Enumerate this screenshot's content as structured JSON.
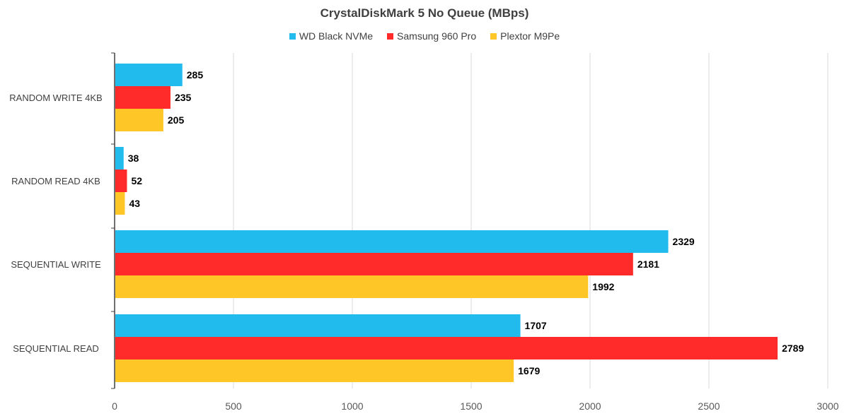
{
  "chart_data": {
    "type": "bar",
    "orientation": "horizontal",
    "title": "CrystalDiskMark 5 No Queue (MBps)",
    "categories": [
      "RANDOM WRITE 4KB",
      "RANDOM READ 4KB",
      "SEQUENTIAL WRITE",
      "SEQUENTIAL READ"
    ],
    "series": [
      {
        "name": "WD Black NVMe",
        "color": "#22bbee",
        "values": [
          285,
          38,
          2329,
          1707
        ]
      },
      {
        "name": "Samsung 960 Pro",
        "color": "#ff2a2a",
        "values": [
          235,
          52,
          2181,
          2789
        ]
      },
      {
        "name": "Plextor M9Pe",
        "color": "#ffc627",
        "values": [
          205,
          43,
          1992,
          1679
        ]
      }
    ],
    "xlim": [
      0,
      3000
    ],
    "xticks": [
      0,
      500,
      1000,
      1500,
      2000,
      2500,
      3000
    ],
    "grid": "vertical",
    "legend_position": "top",
    "data_labels": true
  }
}
